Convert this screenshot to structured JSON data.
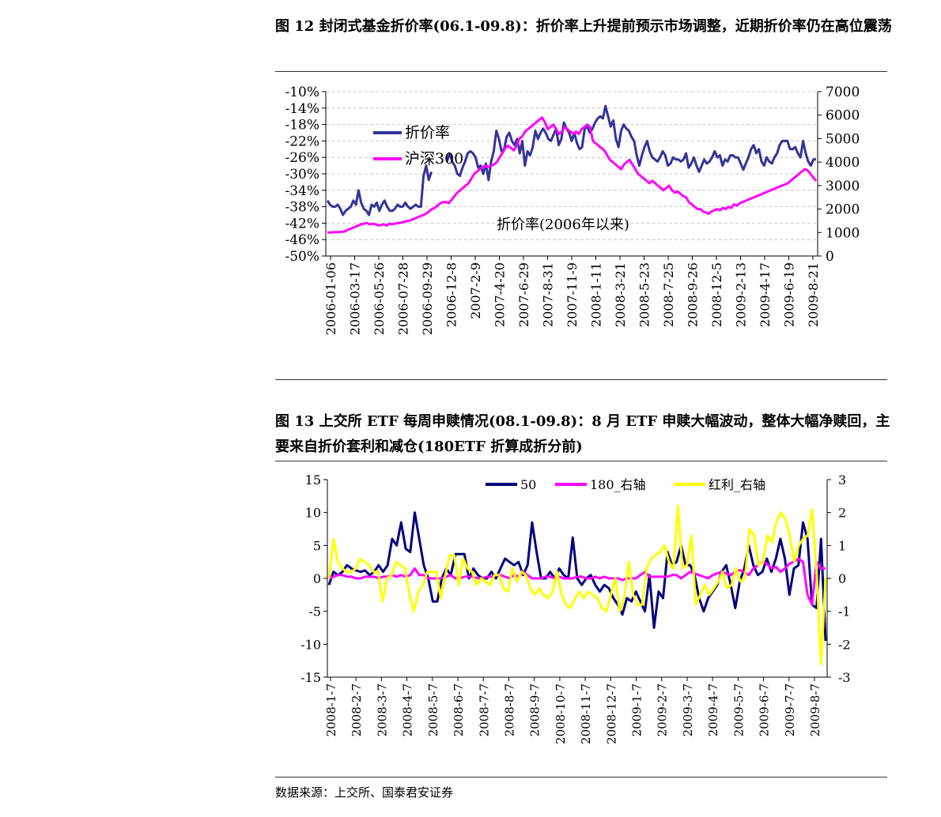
{
  "figure12": {
    "title": "图 12  封闭式基金折价率(06.1-09.8)：折价率上升提前预示市场调整，近期折价率仍在高位震荡"
  },
  "figure13": {
    "title": "图 13  上交所 ETF 每周申赎情况(08.1-09.8)：8 月 ETF 申赎大幅波动，整体大幅净赎回，主要来自折价套利和减仓(180ETF 折算成折分前)"
  },
  "source": "数据来源：上交所、国泰君安证券",
  "chart_data": [
    {
      "type": "line",
      "annotation": "折价率(2006年以来)",
      "x_labels": [
        "2006-01-06",
        "2006-03-17",
        "2006-05-26",
        "2006-07-28",
        "2006-09-29",
        "2006-12-8",
        "2007-2-9",
        "2007-4-20",
        "2007-6-29",
        "2007-8-31",
        "2007-11-9",
        "2008-1-11",
        "2008-3-21",
        "2008-5-23",
        "2008-7-25",
        "2008-9-26",
        "2008-12-5",
        "2009-2-13",
        "2009-4-17",
        "2009-6-19",
        "2009-8-21"
      ],
      "y_left": {
        "ticks": [
          "-10%",
          "-14%",
          "-18%",
          "-22%",
          "-26%",
          "-30%",
          "-34%",
          "-38%",
          "-42%",
          "-46%",
          "-50%"
        ],
        "range": [
          -50,
          -10
        ]
      },
      "y_right": {
        "ticks": [
          "7000",
          "6000",
          "5000",
          "4000",
          "3000",
          "2000",
          "1000",
          "0"
        ],
        "range": [
          0,
          7000
        ]
      },
      "legend_position": "top-left",
      "series": [
        {
          "name": "折价率",
          "axis": "left",
          "color": "#333399",
          "values": [
            -36.5,
            -37.5,
            -38,
            -38,
            -37.5,
            -38.5,
            -40,
            -39,
            -38.5,
            -38,
            -36.5,
            -37.5,
            -34,
            -37,
            -38.5,
            -39,
            -40,
            -37.5,
            -38,
            -37,
            -39,
            -37.5,
            -36.5,
            -38,
            -39,
            -39,
            -38.5,
            -37.5,
            -38,
            -38,
            -37,
            -38,
            -38.5,
            -38,
            -37.5,
            -38,
            -38,
            -30.5,
            -28,
            -31.5,
            -29.5,
            null,
            -29.5,
            null,
            -29,
            null,
            -27,
            -25,
            -27,
            -28,
            -30,
            -30.5,
            -28.5,
            -27,
            -25,
            -24.5,
            -25,
            -26,
            -28.5,
            -28,
            -30,
            -27.5,
            -31.5,
            -27,
            -24.5,
            -19.5,
            -21.5,
            -24.5,
            -24,
            -21,
            -20,
            -22,
            -23,
            -21.5,
            -25,
            -22,
            -28,
            -24.5,
            -25.5,
            -23.5,
            -19.5,
            -21.5,
            -20,
            -19,
            -20,
            -21.5,
            -22,
            -20.5,
            -19,
            -23,
            -21.5,
            -17.5,
            -19,
            -20,
            -22,
            -20,
            -22.5,
            -24,
            -23.5,
            -19,
            -18.5,
            -20,
            -19,
            -17.5,
            -16.5,
            -16,
            -16.5,
            -13.5,
            -16,
            -18.5,
            -17,
            -21.5,
            -23.5,
            -19.5,
            -18,
            -19,
            -19.5,
            -21,
            -22,
            -25.5,
            -28,
            -25.5,
            -23.5,
            -22,
            -24.5,
            -26,
            -26.5,
            -27,
            -26,
            -24.5,
            -25.5,
            -28,
            -27.5,
            -26,
            -26.5,
            -26.5,
            -27,
            -26.5,
            -25,
            -28.5,
            -27.5,
            -26,
            -28,
            -29.5,
            -28,
            -26.5,
            -27.5,
            -27,
            -26,
            -24.5,
            -26,
            -25.5,
            -28,
            -26.5,
            -27,
            -25.5,
            -25.5,
            -26,
            -26,
            -27.5,
            -29,
            -27.5,
            -26,
            -24,
            -23,
            -25,
            -24,
            -27,
            -28,
            -26,
            -27,
            -27.5,
            -26,
            -25,
            -23,
            -22,
            -22,
            -22,
            -24,
            -24,
            -23.5,
            -25,
            -26,
            -22,
            -25,
            -27,
            -28,
            -26.5,
            -26.5
          ]
        },
        {
          "name": "沪深300",
          "axis": "right",
          "color": "#ff00ff",
          "values": [
            1000,
            1000,
            1010,
            1020,
            1020,
            1030,
            1040,
            1100,
            1150,
            1200,
            1250,
            1300,
            1350,
            1380,
            1400,
            1350,
            1380,
            1350,
            1300,
            1320,
            1350,
            1300,
            1380,
            1350,
            1380,
            1400,
            1420,
            1450,
            1480,
            1500,
            1550,
            1600,
            1650,
            1700,
            1750,
            1800,
            1900,
            2000,
            2050,
            2150,
            2250,
            2300,
            2300,
            2250,
            2400,
            2550,
            2700,
            2800,
            2900,
            3000,
            3100,
            3300,
            3500,
            3600,
            3700,
            3800,
            3850,
            3800,
            3850,
            3900,
            4000,
            4200,
            4400,
            4600,
            4700,
            4600,
            4500,
            4700,
            5000,
            5100,
            5300,
            5400,
            5500,
            5600,
            5700,
            5800,
            5900,
            5700,
            5400,
            5500,
            5600,
            5400,
            5200,
            5300,
            5500,
            5400,
            5300,
            5200,
            5300,
            5200,
            5400,
            5500,
            5600,
            5500,
            4900,
            4800,
            4700,
            4600,
            4500,
            4300,
            4100,
            4000,
            3900,
            3800,
            3700,
            3900,
            4000,
            4100,
            3900,
            3700,
            3500,
            3400,
            3300,
            3200,
            3100,
            3200,
            3100,
            3000,
            2900,
            2800,
            2900,
            3000,
            2800,
            2700,
            2750,
            2650,
            2550,
            2500,
            2300,
            2200,
            2100,
            2000,
            2000,
            1900,
            1850,
            1800,
            1900,
            1950,
            2000,
            1950,
            2050,
            2000,
            2100,
            2050,
            2200,
            2150,
            2250,
            2300,
            2350,
            2400,
            2450,
            2500,
            2550,
            2600,
            2650,
            2700,
            2750,
            2800,
            2850,
            2900,
            2950,
            3000,
            3050,
            3100,
            3200,
            3300,
            3400,
            3500,
            3600,
            3700,
            3650,
            3500,
            3350,
            3200
          ]
        }
      ]
    },
    {
      "type": "line",
      "x_labels": [
        "2008-1-7",
        "2008-2-7",
        "2008-3-7",
        "2008-4-7",
        "2008-5-7",
        "2008-6-7",
        "2008-7-7",
        "2008-8-7",
        "2008-9-7",
        "2008-10-7",
        "2008-11-7",
        "2008-12-7",
        "2009-1-7",
        "2009-2-7",
        "2009-3-7",
        "2009-4-7",
        "2009-5-7",
        "2009-6-7",
        "2009-7-7",
        "2009-8-7"
      ],
      "y_left": {
        "ticks": [
          "15",
          "10",
          "5",
          "0",
          "-5",
          "-10",
          "-15"
        ],
        "range": [
          -15,
          15
        ]
      },
      "y_right": {
        "ticks": [
          "3",
          "2",
          "1",
          "0",
          "-1",
          "-2",
          "-3"
        ],
        "range": [
          -3,
          3
        ]
      },
      "legend_position": "top",
      "series": [
        {
          "name": "50",
          "axis": "left",
          "color": "#000080",
          "values": [
            -1,
            1,
            0.5,
            1,
            2,
            1.5,
            1.2,
            1,
            1.2,
            0.5,
            1,
            2,
            1,
            2,
            6,
            5,
            8.5,
            4.5,
            4,
            10,
            6,
            2,
            0,
            -3.5,
            -3.5,
            0,
            1.5,
            0.5,
            3.7,
            3.7,
            3.7,
            0,
            1.5,
            0.5,
            0,
            0,
            1,
            0,
            1.5,
            3,
            2.5,
            2,
            2.5,
            0.5,
            2,
            8.5,
            4,
            0,
            0,
            1,
            0,
            1.5,
            0.5,
            0,
            6.2,
            0,
            -1,
            0,
            0.5,
            -1,
            -2,
            -1,
            -1.5,
            -3,
            -4,
            -5.5,
            -3,
            -3.5,
            -2,
            -3.5,
            -5,
            0.5,
            -7.5,
            -2,
            -3,
            4,
            2,
            2.5,
            5,
            2,
            2,
            0.5,
            -3,
            -5,
            -3,
            -2,
            -1,
            1,
            2,
            -1,
            -4.5,
            -0.5,
            1.5,
            5,
            2,
            0.5,
            1,
            3,
            1,
            3,
            6,
            3,
            -2.5,
            1.5,
            2,
            8.5,
            6,
            -4,
            -4.5,
            6,
            -9.5
          ]
        },
        {
          "name": "180_右轴",
          "axis": "right",
          "color": "#ff00ff",
          "values": [
            0,
            0.05,
            0.1,
            0.1,
            0.05,
            0.05,
            0,
            0,
            0.05,
            0.05,
            0.05,
            0,
            0.05,
            0.05,
            0.1,
            0.05,
            0.1,
            0.05,
            0.1,
            0.3,
            0.1,
            0.1,
            0,
            0,
            0,
            0,
            0.05,
            0.1,
            0,
            0,
            0.05,
            0.05,
            0.05,
            0,
            0,
            0.05,
            0.05,
            0.1,
            0.1,
            0.05,
            0,
            0.1,
            0.05,
            0.2,
            0.1,
            0,
            0,
            0,
            0.05,
            0.05,
            0,
            0.05,
            0,
            0,
            0,
            0.05,
            0.05,
            0,
            0,
            0.05,
            0,
            0.05,
            0,
            0,
            0,
            -0.05,
            0,
            0,
            0,
            0.1,
            0.2,
            0.05,
            0.05,
            0.05,
            0.05,
            0.05,
            0.1,
            0.1,
            0,
            0.1,
            0.2,
            0.15,
            0.1,
            0.05,
            0,
            0.1,
            0.15,
            0.2,
            0.15,
            0.1,
            0.2,
            0.25,
            0.2,
            0.1,
            0.3,
            0.4,
            0.5,
            0.45,
            0.3,
            0.35,
            0.2,
            0.3,
            0.45,
            0.5,
            0.6,
            0.5,
            -0.5,
            -0.8,
            0.5,
            0.3,
            0.3
          ]
        },
        {
          "name": "红利_右轴",
          "axis": "right",
          "color": "#ffff00",
          "values": [
            0,
            1.2,
            0.5,
            0.3,
            0.2,
            0.2,
            0.3,
            0.6,
            0.5,
            0.4,
            0.2,
            0.2,
            -0.7,
            0,
            0.1,
            0.5,
            0.4,
            0.3,
            -0.5,
            -1,
            -0.4,
            -0.2,
            0.2,
            0.2,
            0.2,
            -0.6,
            0.1,
            0.7,
            0.7,
            -0.2,
            0.6,
            0.3,
            0.2,
            -0.2,
            0,
            -0.1,
            -0.2,
            0.1,
            0.1,
            -0.3,
            -0.4,
            0.3,
            -0.1,
            0.2,
            0.1,
            -0.3,
            -0.5,
            -0.3,
            -0.5,
            -0.6,
            -0.4,
            0.2,
            -0.5,
            -0.8,
            -0.9,
            -0.6,
            -0.4,
            -0.6,
            -0.4,
            -0.5,
            -0.6,
            -0.9,
            -1,
            -0.5,
            0,
            -1,
            -0.6,
            0.5,
            -0.5,
            -0.8,
            -0.8,
            0.3,
            0.6,
            0.7,
            0.8,
            1,
            0.5,
            0.3,
            2.2,
            0.3,
            0.4,
            1.3,
            -0.8,
            -0.5,
            -0.2,
            -0.5,
            -0.3,
            -0.1,
            0.2,
            -0.3,
            -0.2,
            0.3,
            -0.1,
            0,
            1.5,
            1.3,
            0.4,
            0.5,
            1.3,
            1.1,
            1.7,
            2,
            1.8,
            1.3,
            0.5,
            1,
            1.2,
            1.3,
            2.1,
            0.2,
            -2.6,
            0
          ]
        }
      ]
    }
  ]
}
